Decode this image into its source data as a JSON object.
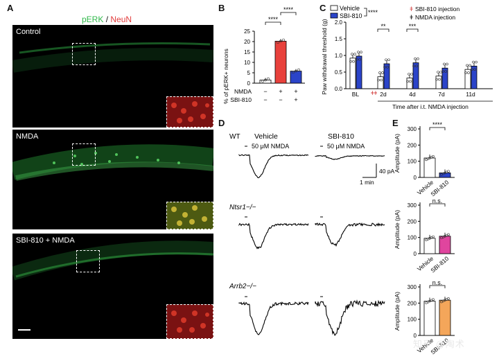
{
  "panels": {
    "A": {
      "label": "A",
      "title_green": "pERK",
      "title_sep": " / ",
      "title_red": "NeuN",
      "images": [
        {
          "name": "Control"
        },
        {
          "name": "NMDA"
        },
        {
          "name": "SBI-810 + NMDA"
        }
      ]
    },
    "B": {
      "label": "B",
      "ylabel": "% of pERK+ neurons",
      "row1_label": "NMDA",
      "row1": [
        "−",
        "+",
        "+"
      ],
      "row2_label": "SBI-810",
      "row2": [
        "−",
        "−",
        "+"
      ],
      "sig1": "****",
      "sig2": "****",
      "yticks": [
        "0",
        "5",
        "10",
        "15",
        "20",
        "25"
      ],
      "colors": [
        "#ffffff",
        "#e8413c",
        "#2b44c9"
      ]
    },
    "C": {
      "label": "C",
      "ylabel": "Paw withdrawal threshold (g)",
      "legend_vehicle": "Vehicle",
      "legend_sbi": "SBI-810",
      "legend_sig": "****",
      "inj1": "SBI-810 injection",
      "inj2": "NMDA injection",
      "xticks": [
        "BL",
        "2d",
        "4d",
        "7d",
        "11d"
      ],
      "xlabel": "Time after i.t. NMDA injection",
      "sigs": [
        "**",
        "***"
      ],
      "yticks": [
        "0.0",
        "0.5",
        "1.0",
        "1.5",
        "2.0"
      ]
    },
    "D": {
      "label": "D",
      "rows": [
        {
          "genotype": "WT",
          "col1": "Vehicle",
          "col2": "SBI-810",
          "stim1": "50 μM NMDA",
          "stim2": "50 μM NMDA"
        },
        {
          "genotype": "Ntsr1−/−"
        },
        {
          "genotype": "Arrb2−/−"
        }
      ],
      "scale_y": "40 pA",
      "scale_x": "1 min"
    },
    "E": {
      "label": "E",
      "ylabel": "Amplitude (pA)",
      "xlabels": [
        "Vehicle",
        "SBI-810"
      ],
      "sigs": [
        "****",
        "n.s.",
        "n.s."
      ],
      "yticks1": [
        "0",
        "100",
        "200",
        "300"
      ],
      "yticks2": [
        "0",
        "100",
        "200",
        "300"
      ],
      "yticks3": [
        "0",
        "100",
        "200",
        "300"
      ],
      "fill2": [
        "#ffffff",
        "#e0459e"
      ],
      "fill3": [
        "#ffffff",
        "#f4a65a"
      ]
    }
  },
  "watermark": "知乎 @陶术",
  "chart_data": [
    {
      "type": "bar",
      "panel": "B",
      "categories": [
        "Vehicle",
        "NMDA",
        "SBI-810 + NMDA"
      ],
      "values": [
        1.5,
        20.2,
        5.8
      ],
      "ylabel": "% of pERK+ neurons",
      "ylim": [
        0,
        25
      ]
    },
    {
      "type": "bar",
      "panel": "C",
      "categories": [
        "BL",
        "2d",
        "4d",
        "7d",
        "11d"
      ],
      "series": [
        {
          "name": "Vehicle",
          "values": [
            0.92,
            0.36,
            0.32,
            0.38,
            0.58
          ]
        },
        {
          "name": "SBI-810",
          "values": [
            0.98,
            0.75,
            0.78,
            0.62,
            0.68
          ]
        }
      ],
      "ylabel": "Paw withdrawal threshold (g)",
      "ylim": [
        0,
        2.0
      ]
    },
    {
      "type": "bar",
      "panel": "E1",
      "categories": [
        "Vehicle",
        "SBI-810"
      ],
      "values": [
        120,
        28
      ],
      "ylabel": "Amplitude (pA)",
      "ylim": [
        0,
        300
      ]
    },
    {
      "type": "bar",
      "panel": "E2",
      "categories": [
        "Vehicle",
        "SBI-810"
      ],
      "values": [
        95,
        108
      ],
      "ylabel": "Amplitude (pA)",
      "ylim": [
        0,
        300
      ]
    },
    {
      "type": "bar",
      "panel": "E3",
      "categories": [
        "Vehicle",
        "SBI-810"
      ],
      "values": [
        212,
        218
      ],
      "ylabel": "Amplitude (pA)",
      "ylim": [
        0,
        300
      ]
    }
  ]
}
